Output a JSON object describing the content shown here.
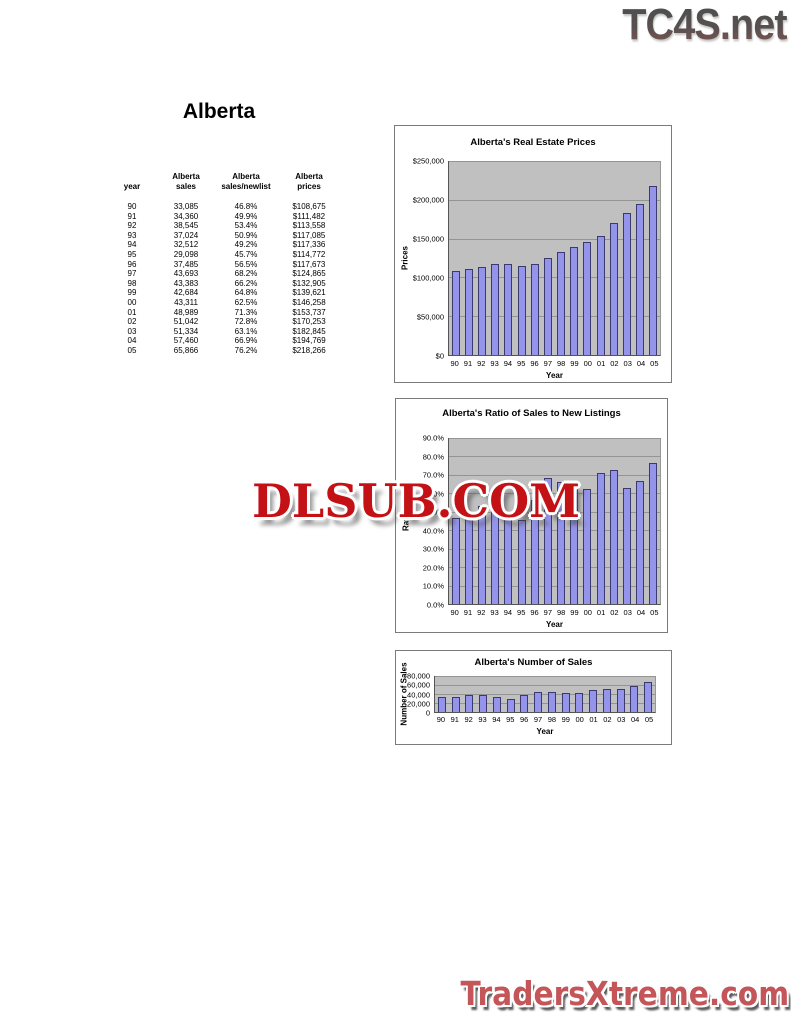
{
  "logo": {
    "text": "TC4S.net"
  },
  "page_title": "Alberta",
  "table": {
    "col_headers": [
      "year",
      "Alberta\nsales",
      "Alberta\nsales/newlist",
      "Alberta\nprices"
    ],
    "rows": [
      [
        "90",
        "33,085",
        "46.8%",
        "$108,675"
      ],
      [
        "91",
        "34,360",
        "49.9%",
        "$111,482"
      ],
      [
        "92",
        "38,545",
        "53.4%",
        "$113,558"
      ],
      [
        "93",
        "37,024",
        "50.9%",
        "$117,085"
      ],
      [
        "94",
        "32,512",
        "49.2%",
        "$117,336"
      ],
      [
        "95",
        "29,098",
        "45.7%",
        "$114,772"
      ],
      [
        "96",
        "37,485",
        "56.5%",
        "$117,673"
      ],
      [
        "97",
        "43,693",
        "68.2%",
        "$124,865"
      ],
      [
        "98",
        "43,383",
        "66.2%",
        "$132,905"
      ],
      [
        "99",
        "42,684",
        "64.8%",
        "$139,621"
      ],
      [
        "00",
        "43,311",
        "62.5%",
        "$146,258"
      ],
      [
        "01",
        "48,989",
        "71.3%",
        "$153,737"
      ],
      [
        "02",
        "51,042",
        "72.8%",
        "$170,253"
      ],
      [
        "03",
        "51,334",
        "63.1%",
        "$182,845"
      ],
      [
        "04",
        "57,460",
        "66.9%",
        "$194,769"
      ],
      [
        "05",
        "65,866",
        "76.2%",
        "$218,266"
      ]
    ]
  },
  "watermark": {
    "text": "DLSUB.COM"
  },
  "footer": {
    "text": "TradersXtreme.com"
  },
  "chart_data": [
    {
      "type": "bar",
      "title": "Alberta's Real Estate Prices",
      "xlabel": "Year",
      "ylabel": "Prices",
      "categories": [
        "90",
        "91",
        "92",
        "93",
        "94",
        "95",
        "96",
        "97",
        "98",
        "99",
        "00",
        "01",
        "02",
        "03",
        "04",
        "05"
      ],
      "values": [
        108675,
        111482,
        113558,
        117085,
        117336,
        114772,
        117673,
        124865,
        132905,
        139621,
        146258,
        153737,
        170253,
        182845,
        194769,
        218266
      ],
      "ylim": [
        0,
        250000
      ],
      "y_ticks": [
        "$250,000",
        "$200,000",
        "$150,000",
        "$100,000",
        "$50,000",
        "$0"
      ],
      "grid": true,
      "legend": "none",
      "bar_color": "#9494EA",
      "bar_border": "#3A3A6E",
      "plot_bg": "#C0C0C0"
    },
    {
      "type": "bar",
      "title": "Alberta's Ratio of Sales to New Listings",
      "xlabel": "Year",
      "ylabel": "Ratio",
      "categories": [
        "90",
        "91",
        "92",
        "93",
        "94",
        "95",
        "96",
        "97",
        "98",
        "99",
        "00",
        "01",
        "02",
        "03",
        "04",
        "05"
      ],
      "values": [
        46.8,
        49.9,
        53.4,
        50.9,
        49.2,
        45.7,
        56.5,
        68.2,
        66.2,
        64.8,
        62.5,
        71.3,
        72.8,
        63.1,
        66.9,
        76.2
      ],
      "ylim": [
        0,
        90
      ],
      "y_ticks": [
        "90.0%",
        "80.0%",
        "70.0%",
        "60.0%",
        "50.0%",
        "40.0%",
        "30.0%",
        "20.0%",
        "10.0%",
        "0.0%"
      ],
      "grid": true,
      "legend": "none",
      "bar_color": "#9494EA",
      "bar_border": "#3A3A6E",
      "plot_bg": "#C0C0C0"
    },
    {
      "type": "bar",
      "title": "Alberta's Number of Sales",
      "xlabel": "Year",
      "ylabel": "Number of Sales",
      "categories": [
        "90",
        "91",
        "92",
        "93",
        "94",
        "95",
        "96",
        "97",
        "98",
        "99",
        "00",
        "01",
        "02",
        "03",
        "04",
        "05"
      ],
      "values": [
        33085,
        34360,
        38545,
        37024,
        32512,
        29098,
        37485,
        43693,
        43383,
        42684,
        43311,
        48989,
        51042,
        51334,
        57460,
        65866
      ],
      "ylim": [
        0,
        80000
      ],
      "y_ticks": [
        "80,000",
        "60,000",
        "40,000",
        "20,000",
        "0"
      ],
      "grid": true,
      "legend": "none",
      "bar_color": "#9494EA",
      "bar_border": "#3A3A6E",
      "plot_bg": "#C0C0C0"
    }
  ]
}
